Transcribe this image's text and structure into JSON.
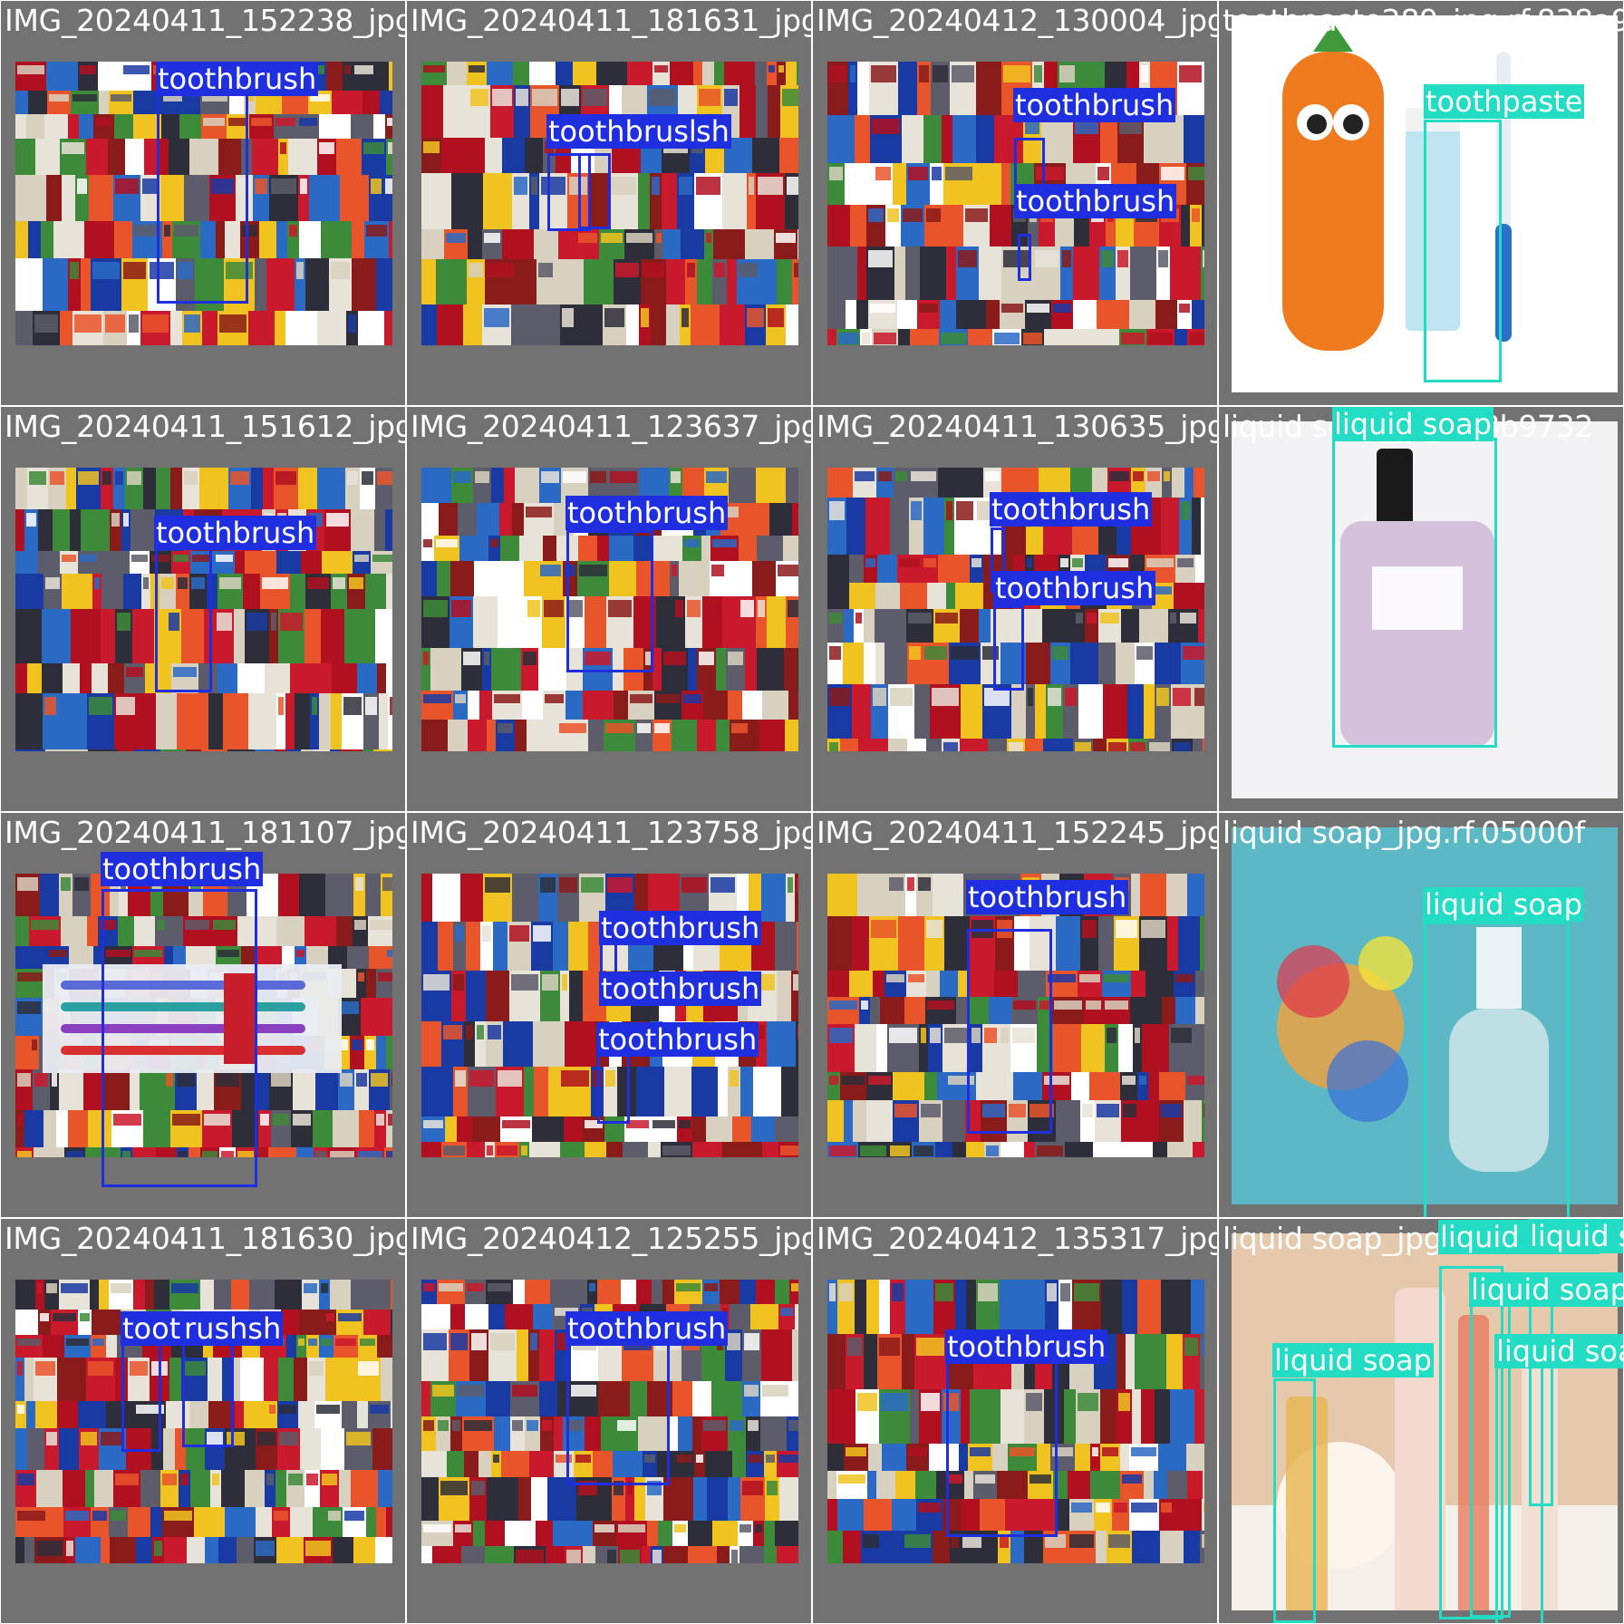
{
  "colors": {
    "toothbrush": "#1f2fe0",
    "toothpaste": "#22ddc4",
    "liquid_soap": "#22ddc4",
    "tile_background": "#727272"
  },
  "tiles": [
    {
      "filename": "IMG_20240411_152238_jpg.rf.3",
      "scene": "shelf",
      "detections": [
        {
          "label": "toothbrush"
        }
      ]
    },
    {
      "filename": "IMG_20240411_181631_jpg.rf.c",
      "scene": "shelf",
      "detections": [
        {
          "label": "toothbrush"
        },
        {
          "label": "sh"
        }
      ]
    },
    {
      "filename": "IMG_20240412_130004_jpg.rf.6",
      "scene": "shelf",
      "detections": [
        {
          "label": "toothbrush"
        },
        {
          "label": "toothbrush"
        }
      ]
    },
    {
      "filename": "toothpaste289_jpg.rf.838a9f",
      "scene": "carrot",
      "detections": [
        {
          "label": "toothpaste"
        }
      ]
    },
    {
      "filename": "IMG_20240411_151612_jpg.rf.f",
      "scene": "shelf",
      "detections": [
        {
          "label": "toothbrush"
        }
      ]
    },
    {
      "filename": "IMG_20240411_123637_jpg.rf.3",
      "scene": "shelf",
      "detections": [
        {
          "label": "toothbrush"
        }
      ]
    },
    {
      "filename": "IMG_20240411_130635_jpg.rf.8",
      "scene": "shelf",
      "detections": [
        {
          "label": "toothbrush"
        },
        {
          "label": "toothbrush"
        }
      ]
    },
    {
      "filename": "liquid soap_jpg.rf.8b9732",
      "scene": "dior",
      "detections": [
        {
          "label": "liquid soap"
        }
      ]
    },
    {
      "filename": "IMG_20240411_181107_jpg.rf.9",
      "scene": "pack",
      "detections": [
        {
          "label": "toothbrush"
        }
      ]
    },
    {
      "filename": "IMG_20240411_123758_jpg.rf.9",
      "scene": "shelf",
      "detections": [
        {
          "label": "toothbrush"
        },
        {
          "label": "toothbrush"
        },
        {
          "label": "toothbrush"
        }
      ]
    },
    {
      "filename": "IMG_20240411_152245_jpg.rf.8",
      "scene": "shelf",
      "detections": [
        {
          "label": "toothbrush"
        }
      ]
    },
    {
      "filename": "liquid soap_jpg.rf.05000f",
      "scene": "teal",
      "detections": [
        {
          "label": "liquid soap"
        }
      ]
    },
    {
      "filename": "IMG_20240411_181630_jpg.rf.e",
      "scene": "shelf",
      "detections": [
        {
          "label": "toothbrush"
        },
        {
          "label": "rush"
        }
      ]
    },
    {
      "filename": "IMG_20240412_125255_jpg.rf.c",
      "scene": "shelf",
      "detections": [
        {
          "label": "toothbrush"
        }
      ]
    },
    {
      "filename": "IMG_20240412_135317_jpg.rf.d",
      "scene": "shelf",
      "detections": [
        {
          "label": "toothbrush"
        }
      ]
    },
    {
      "filename": "liquid soap_jpg.rf.c60c",
      "scene": "bath",
      "detections": [
        {
          "label": "liquid soap"
        },
        {
          "label": "liquid soap"
        },
        {
          "label": "liquid soap"
        },
        {
          "label": "liquid soap"
        },
        {
          "label": "liquid soap"
        }
      ]
    }
  ]
}
